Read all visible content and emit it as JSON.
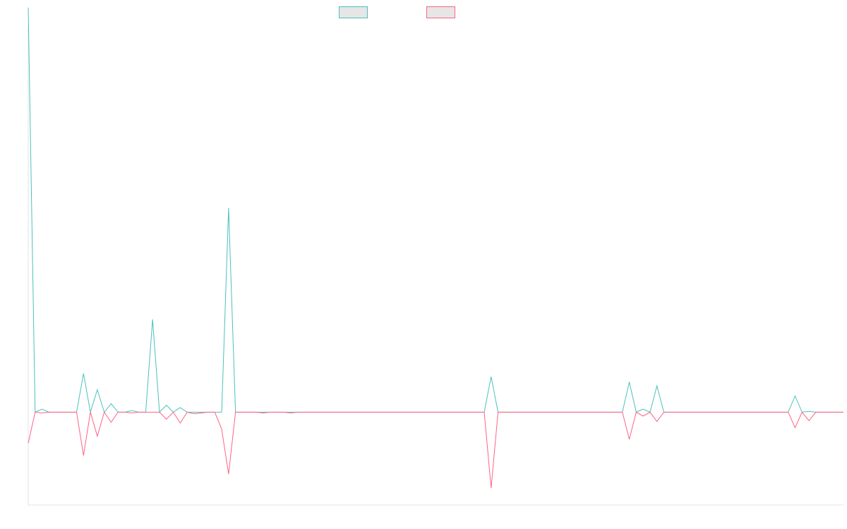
{
  "chart_data": {
    "type": "line",
    "title": "",
    "xlabel": "",
    "ylabel": "",
    "grid": false,
    "legend_position": "top-center",
    "x_count": 119,
    "ylim": [
      -600,
      2500
    ],
    "series": [
      {
        "name": "",
        "color": "#4bc0c0",
        "fill": "#e6e6e6",
        "points": [
          [
            0,
            2615
          ],
          [
            1,
            0
          ],
          [
            2,
            20
          ],
          [
            3,
            0
          ],
          [
            4,
            0
          ],
          [
            5,
            0
          ],
          [
            6,
            0
          ],
          [
            7,
            0
          ],
          [
            8,
            250
          ],
          [
            9,
            0
          ],
          [
            10,
            145
          ],
          [
            11,
            0
          ],
          [
            12,
            55
          ],
          [
            13,
            0
          ],
          [
            14,
            0
          ],
          [
            15,
            10
          ],
          [
            16,
            0
          ],
          [
            17,
            0
          ],
          [
            18,
            600
          ],
          [
            19,
            0
          ],
          [
            20,
            45
          ],
          [
            21,
            0
          ],
          [
            22,
            30
          ],
          [
            23,
            0
          ],
          [
            24,
            0
          ],
          [
            25,
            0
          ],
          [
            26,
            0
          ],
          [
            27,
            0
          ],
          [
            28,
            0
          ],
          [
            29,
            1320
          ],
          [
            30,
            0
          ],
          [
            31,
            0
          ],
          [
            32,
            0
          ],
          [
            33,
            0
          ],
          [
            34,
            0
          ],
          [
            35,
            0
          ],
          [
            36,
            0
          ],
          [
            37,
            0
          ],
          [
            38,
            0
          ],
          [
            39,
            0
          ],
          [
            40,
            0
          ],
          [
            41,
            0
          ],
          [
            42,
            0
          ],
          [
            43,
            0
          ],
          [
            44,
            0
          ],
          [
            45,
            0
          ],
          [
            46,
            0
          ],
          [
            47,
            0
          ],
          [
            48,
            0
          ],
          [
            49,
            0
          ],
          [
            50,
            0
          ],
          [
            51,
            0
          ],
          [
            52,
            0
          ],
          [
            53,
            0
          ],
          [
            54,
            0
          ],
          [
            55,
            0
          ],
          [
            56,
            0
          ],
          [
            57,
            0
          ],
          [
            58,
            0
          ],
          [
            59,
            0
          ],
          [
            60,
            0
          ],
          [
            61,
            0
          ],
          [
            62,
            0
          ],
          [
            63,
            0
          ],
          [
            64,
            0
          ],
          [
            65,
            0
          ],
          [
            66,
            0
          ],
          [
            67,
            230
          ],
          [
            68,
            0
          ],
          [
            69,
            0
          ],
          [
            70,
            0
          ],
          [
            71,
            0
          ],
          [
            72,
            0
          ],
          [
            73,
            0
          ],
          [
            74,
            0
          ],
          [
            75,
            0
          ],
          [
            76,
            0
          ],
          [
            77,
            0
          ],
          [
            78,
            0
          ],
          [
            79,
            0
          ],
          [
            80,
            0
          ],
          [
            81,
            0
          ],
          [
            82,
            0
          ],
          [
            83,
            0
          ],
          [
            84,
            0
          ],
          [
            85,
            0
          ],
          [
            86,
            0
          ],
          [
            87,
            195
          ],
          [
            88,
            0
          ],
          [
            89,
            20
          ],
          [
            90,
            0
          ],
          [
            91,
            170
          ],
          [
            92,
            0
          ],
          [
            93,
            0
          ],
          [
            94,
            0
          ],
          [
            95,
            0
          ],
          [
            96,
            0
          ],
          [
            97,
            0
          ],
          [
            98,
            0
          ],
          [
            99,
            0
          ],
          [
            100,
            0
          ],
          [
            101,
            0
          ],
          [
            102,
            0
          ],
          [
            103,
            0
          ],
          [
            104,
            0
          ],
          [
            105,
            0
          ],
          [
            106,
            0
          ],
          [
            107,
            0
          ],
          [
            108,
            0
          ],
          [
            109,
            0
          ],
          [
            110,
            0
          ],
          [
            111,
            105
          ],
          [
            112,
            0
          ],
          [
            113,
            5
          ],
          [
            114,
            0
          ],
          [
            115,
            0
          ],
          [
            116,
            0
          ],
          [
            117,
            0
          ],
          [
            118,
            0
          ]
        ]
      },
      {
        "name": "",
        "color": "#ff6384",
        "fill": "#e6e6e6",
        "points": [
          [
            0,
            -200
          ],
          [
            1,
            0
          ],
          [
            2,
            -5
          ],
          [
            3,
            0
          ],
          [
            4,
            0
          ],
          [
            5,
            0
          ],
          [
            6,
            0
          ],
          [
            7,
            0
          ],
          [
            8,
            -280
          ],
          [
            9,
            0
          ],
          [
            10,
            -155
          ],
          [
            11,
            0
          ],
          [
            12,
            -65
          ],
          [
            13,
            0
          ],
          [
            14,
            0
          ],
          [
            15,
            -5
          ],
          [
            16,
            0
          ],
          [
            17,
            0
          ],
          [
            18,
            0
          ],
          [
            19,
            0
          ],
          [
            20,
            -45
          ],
          [
            21,
            0
          ],
          [
            22,
            -70
          ],
          [
            23,
            0
          ],
          [
            24,
            -10
          ],
          [
            25,
            -5
          ],
          [
            26,
            0
          ],
          [
            27,
            0
          ],
          [
            28,
            -110
          ],
          [
            29,
            -400
          ],
          [
            30,
            0
          ],
          [
            31,
            0
          ],
          [
            32,
            0
          ],
          [
            33,
            0
          ],
          [
            34,
            -5
          ],
          [
            35,
            0
          ],
          [
            36,
            0
          ],
          [
            37,
            0
          ],
          [
            38,
            -5
          ],
          [
            39,
            0
          ],
          [
            40,
            0
          ],
          [
            41,
            0
          ],
          [
            42,
            0
          ],
          [
            43,
            0
          ],
          [
            44,
            0
          ],
          [
            45,
            0
          ],
          [
            46,
            0
          ],
          [
            47,
            0
          ],
          [
            48,
            0
          ],
          [
            49,
            0
          ],
          [
            50,
            0
          ],
          [
            51,
            0
          ],
          [
            52,
            0
          ],
          [
            53,
            0
          ],
          [
            54,
            0
          ],
          [
            55,
            0
          ],
          [
            56,
            0
          ],
          [
            57,
            0
          ],
          [
            58,
            0
          ],
          [
            59,
            0
          ],
          [
            60,
            0
          ],
          [
            61,
            0
          ],
          [
            62,
            0
          ],
          [
            63,
            0
          ],
          [
            64,
            0
          ],
          [
            65,
            0
          ],
          [
            66,
            0
          ],
          [
            67,
            -490
          ],
          [
            68,
            0
          ],
          [
            69,
            0
          ],
          [
            70,
            0
          ],
          [
            71,
            0
          ],
          [
            72,
            0
          ],
          [
            73,
            0
          ],
          [
            74,
            0
          ],
          [
            75,
            0
          ],
          [
            76,
            0
          ],
          [
            77,
            0
          ],
          [
            78,
            0
          ],
          [
            79,
            0
          ],
          [
            80,
            0
          ],
          [
            81,
            0
          ],
          [
            82,
            0
          ],
          [
            83,
            0
          ],
          [
            84,
            0
          ],
          [
            85,
            0
          ],
          [
            86,
            0
          ],
          [
            87,
            -175
          ],
          [
            88,
            0
          ],
          [
            89,
            -25
          ],
          [
            90,
            0
          ],
          [
            91,
            -60
          ],
          [
            92,
            0
          ],
          [
            93,
            0
          ],
          [
            94,
            0
          ],
          [
            95,
            0
          ],
          [
            96,
            0
          ],
          [
            97,
            0
          ],
          [
            98,
            0
          ],
          [
            99,
            0
          ],
          [
            100,
            0
          ],
          [
            101,
            0
          ],
          [
            102,
            0
          ],
          [
            103,
            0
          ],
          [
            104,
            0
          ],
          [
            105,
            0
          ],
          [
            106,
            0
          ],
          [
            107,
            0
          ],
          [
            108,
            0
          ],
          [
            109,
            0
          ],
          [
            110,
            0
          ],
          [
            111,
            -100
          ],
          [
            112,
            0
          ],
          [
            113,
            -55
          ],
          [
            114,
            0
          ],
          [
            115,
            0
          ],
          [
            116,
            0
          ],
          [
            117,
            0
          ],
          [
            118,
            0
          ]
        ]
      }
    ]
  }
}
